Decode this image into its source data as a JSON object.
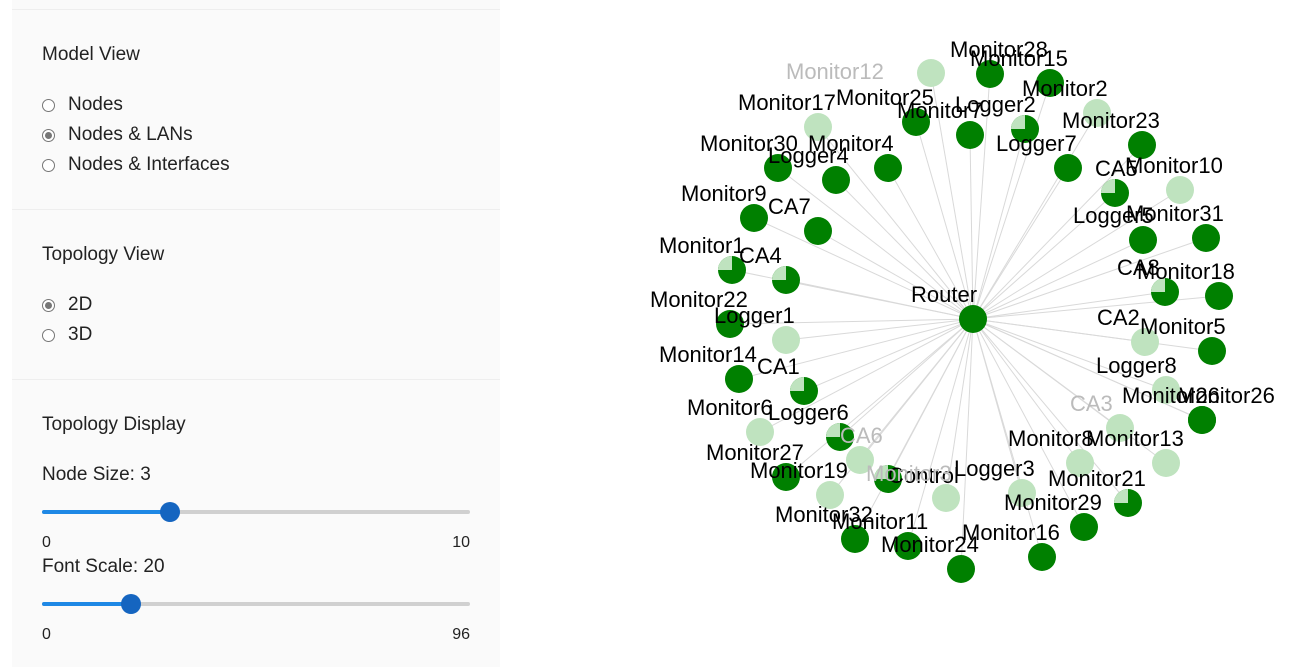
{
  "model_view": {
    "title": "Model View",
    "options": [
      "Nodes",
      "Nodes & LANs",
      "Nodes & Interfaces"
    ],
    "selected": "Nodes & LANs"
  },
  "topology_view": {
    "title": "Topology View",
    "options": [
      "2D",
      "3D"
    ],
    "selected": "2D"
  },
  "topology_display": {
    "title": "Topology Display",
    "node_size": {
      "label": "Node Size: 3",
      "value": 3,
      "min": "0",
      "max": "10"
    },
    "font_scale": {
      "label": "Font Scale: 20",
      "value": 20,
      "min": "0",
      "max": "96"
    }
  },
  "graph": {
    "center": "Router",
    "colors": {
      "node": "#008000",
      "light": "#bfe3bf",
      "edge": "#d9d9d9",
      "text": "#000000",
      "faded_text": "#bbbbbb"
    },
    "nodes": [
      {
        "name": "Monitor26",
        "style": "dark"
      },
      {
        "name": "Monitor28",
        "style": "dark"
      },
      {
        "name": "Monitor15",
        "style": "dark"
      },
      {
        "name": "Monitor12",
        "style": "faded"
      },
      {
        "name": "Monitor2",
        "style": "light"
      },
      {
        "name": "Monitor25",
        "style": "dark"
      },
      {
        "name": "Monitor7",
        "style": "dark"
      },
      {
        "name": "Logger2",
        "style": "split"
      },
      {
        "name": "Monitor17",
        "style": "light"
      },
      {
        "name": "Monitor23",
        "style": "dark"
      },
      {
        "name": "Monitor30",
        "style": "dark"
      },
      {
        "name": "Monitor4",
        "style": "dark"
      },
      {
        "name": "Logger4",
        "style": "dark"
      },
      {
        "name": "Logger7",
        "style": "dark"
      },
      {
        "name": "CA5",
        "style": "split"
      },
      {
        "name": "Monitor10",
        "style": "light"
      },
      {
        "name": "Monitor9",
        "style": "dark"
      },
      {
        "name": "CA7",
        "style": "dark"
      },
      {
        "name": "Logger5",
        "style": "dark"
      },
      {
        "name": "Monitor31",
        "style": "dark"
      },
      {
        "name": "Monitor1",
        "style": "split"
      },
      {
        "name": "CA4",
        "style": "split"
      },
      {
        "name": "CA8",
        "style": "split"
      },
      {
        "name": "Monitor18",
        "style": "dark"
      },
      {
        "name": "Router",
        "style": "dark"
      },
      {
        "name": "Monitor22",
        "style": "dark"
      },
      {
        "name": "Logger1",
        "style": "light"
      },
      {
        "name": "CA2",
        "style": "light"
      },
      {
        "name": "Monitor5",
        "style": "dark"
      },
      {
        "name": "Monitor14",
        "style": "dark"
      },
      {
        "name": "CA1",
        "style": "split"
      },
      {
        "name": "Logger8",
        "style": "light"
      },
      {
        "name": "Monitor26",
        "style": "dark"
      },
      {
        "name": "Monitor6",
        "style": "light"
      },
      {
        "name": "Logger6",
        "style": "split"
      },
      {
        "name": "CA3",
        "style": "faded"
      },
      {
        "name": "Monitor8",
        "style": "light"
      },
      {
        "name": "Monitor13",
        "style": "light"
      },
      {
        "name": "Monitor27",
        "style": "dark"
      },
      {
        "name": "CA6",
        "style": "faded"
      },
      {
        "name": "Monitor19",
        "style": "light"
      },
      {
        "name": "Control",
        "style": "split"
      },
      {
        "name": "Logger3",
        "style": "light"
      },
      {
        "name": "Monitor21",
        "style": "split"
      },
      {
        "name": "Monitor3",
        "style": "faded"
      },
      {
        "name": "Monitor29",
        "style": "dark"
      },
      {
        "name": "Monitor32",
        "style": "dark"
      },
      {
        "name": "Monitor11",
        "style": "dark"
      },
      {
        "name": "Monitor16",
        "style": "dark"
      },
      {
        "name": "Monitor24",
        "style": "dark"
      }
    ]
  }
}
